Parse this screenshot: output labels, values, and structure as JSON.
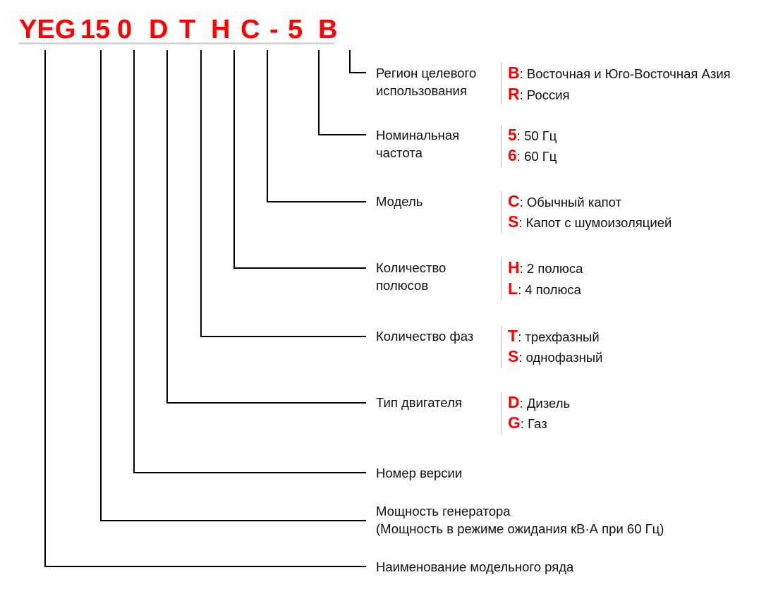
{
  "model_code": [
    "YEG",
    "15",
    "0",
    "D",
    "T",
    "H",
    "C",
    "-",
    "5",
    "B"
  ],
  "accent_color": "#ff0000",
  "items": [
    {
      "id": "region",
      "label": [
        "Регион целевого",
        "использования"
      ],
      "options": [
        {
          "code": "B",
          "text": ": Восточная и Юго-Восточная Азия"
        },
        {
          "code": "R",
          "text": ": Россия"
        }
      ]
    },
    {
      "id": "frequency",
      "label": [
        "Номинальная",
        "частота"
      ],
      "options": [
        {
          "code": "5",
          "text": ": 50 Гц"
        },
        {
          "code": "6",
          "text": ": 60 Гц"
        }
      ]
    },
    {
      "id": "model",
      "label": [
        "Модель"
      ],
      "options": [
        {
          "code": "C",
          "text": ": Обычный капот"
        },
        {
          "code": "S",
          "text": ": Капот с шумоизоляцией"
        }
      ]
    },
    {
      "id": "poles",
      "label": [
        "Количество",
        "полюсов"
      ],
      "options": [
        {
          "code": "H",
          "text": ": 2 полюса"
        },
        {
          "code": "L",
          "text": ": 4 полюса"
        }
      ]
    },
    {
      "id": "phases",
      "label": [
        "Количество фаз"
      ],
      "options": [
        {
          "code": "T",
          "text": ": трехфазный"
        },
        {
          "code": "S",
          "text": ": однофазный"
        }
      ]
    },
    {
      "id": "engine",
      "label": [
        "Тип двигателя"
      ],
      "options": [
        {
          "code": "D",
          "text": ": Дизель"
        },
        {
          "code": "G",
          "text": ": Газ"
        }
      ]
    },
    {
      "id": "version",
      "label": [
        "Номер версии"
      ],
      "options": []
    },
    {
      "id": "power",
      "label": [
        "Мощность генератора",
        "(Мощность в режиме ожидания кВ·А при 60 Гц)"
      ],
      "options": []
    },
    {
      "id": "series",
      "label": [
        "Наименование модельного ряда"
      ],
      "options": []
    }
  ]
}
